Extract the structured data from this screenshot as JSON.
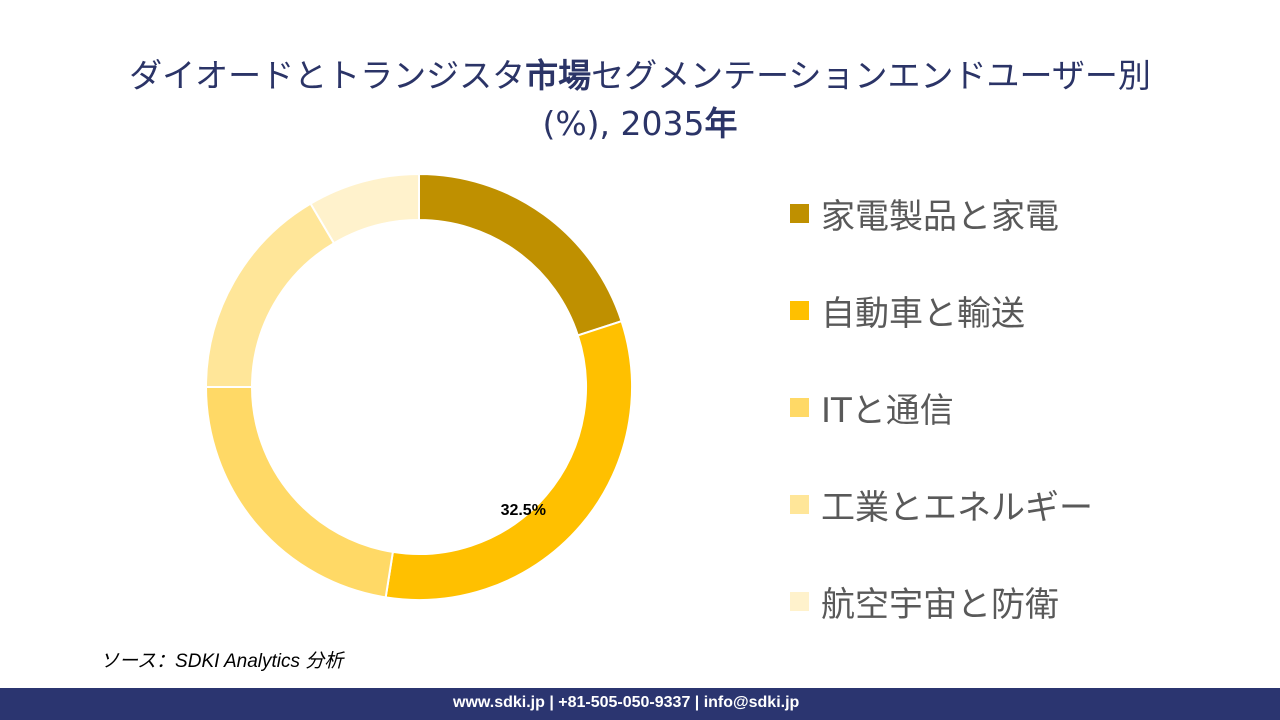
{
  "title": {
    "line1_pre": "ダイオードとトランジスタ",
    "line1_bold": "市場",
    "line1_post": "セグメンテーションエンドユーザー別",
    "line2_pre": "(%), 2035",
    "line2_bold": "年"
  },
  "chart_data": {
    "type": "pie",
    "donut": true,
    "title": "ダイオードとトランジスタ市場セグメンテーションエンドユーザー別 (%), 2035年",
    "categories": [
      "家電製品と家電",
      "自動車と輸送",
      "ITと通信",
      "工業とエネルギー",
      "航空宇宙と防衛"
    ],
    "values": [
      20.0,
      32.5,
      22.5,
      16.5,
      8.5
    ],
    "colors": [
      "#bf9000",
      "#ffc000",
      "#ffd966",
      "#ffe699",
      "#fff2cc"
    ],
    "data_labels": [
      null,
      "32.5%",
      null,
      null,
      null
    ],
    "legend_position": "right"
  },
  "source": "ソース：SDKI Analytics 分析",
  "footer": "www.sdki.jp | +81-505-050-9337 | info@sdki.jp"
}
